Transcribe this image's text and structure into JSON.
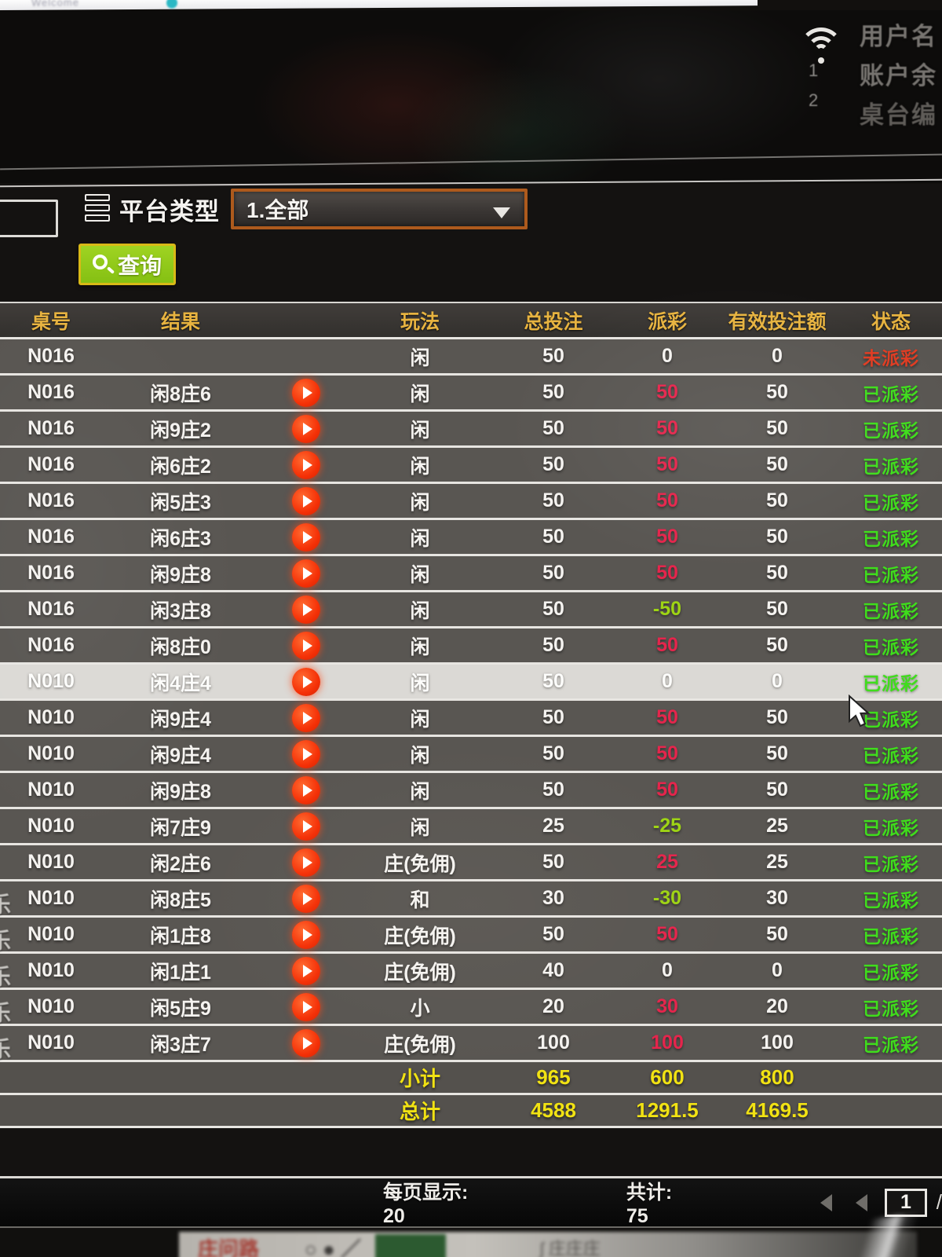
{
  "top": {
    "welcome": "Welcome",
    "right_panel": {
      "lines": [
        "用户名",
        "账户余",
        "桌台编"
      ],
      "numbers": [
        "1",
        "2"
      ]
    }
  },
  "filter": {
    "label": "平台类型",
    "dropdown_value": "1.全部",
    "query_label": "查询"
  },
  "table": {
    "headers": [
      "桌号",
      "结果",
      "",
      "玩法",
      "总投注",
      "派彩",
      "有效投注额",
      "状态"
    ],
    "edge_fragment_char": "乐",
    "rows": [
      {
        "table_no": "N016",
        "result": "",
        "play": "闲",
        "bet": "50",
        "payout": "0",
        "payout_color": "white",
        "valid": "0",
        "status": "未派彩",
        "status_color": "red",
        "highlighted": false,
        "edge": false
      },
      {
        "table_no": "N016",
        "result": "闲8庄6",
        "play": "闲",
        "bet": "50",
        "payout": "50",
        "payout_color": "red",
        "valid": "50",
        "status": "已派彩",
        "status_color": "green",
        "highlighted": false,
        "edge": false
      },
      {
        "table_no": "N016",
        "result": "闲9庄2",
        "play": "闲",
        "bet": "50",
        "payout": "50",
        "payout_color": "red",
        "valid": "50",
        "status": "已派彩",
        "status_color": "green",
        "highlighted": false,
        "edge": false
      },
      {
        "table_no": "N016",
        "result": "闲6庄2",
        "play": "闲",
        "bet": "50",
        "payout": "50",
        "payout_color": "red",
        "valid": "50",
        "status": "已派彩",
        "status_color": "green",
        "highlighted": false,
        "edge": false
      },
      {
        "table_no": "N016",
        "result": "闲5庄3",
        "play": "闲",
        "bet": "50",
        "payout": "50",
        "payout_color": "red",
        "valid": "50",
        "status": "已派彩",
        "status_color": "green",
        "highlighted": false,
        "edge": false
      },
      {
        "table_no": "N016",
        "result": "闲6庄3",
        "play": "闲",
        "bet": "50",
        "payout": "50",
        "payout_color": "red",
        "valid": "50",
        "status": "已派彩",
        "status_color": "green",
        "highlighted": false,
        "edge": false
      },
      {
        "table_no": "N016",
        "result": "闲9庄8",
        "play": "闲",
        "bet": "50",
        "payout": "50",
        "payout_color": "red",
        "valid": "50",
        "status": "已派彩",
        "status_color": "green",
        "highlighted": false,
        "edge": false
      },
      {
        "table_no": "N016",
        "result": "闲3庄8",
        "play": "闲",
        "bet": "50",
        "payout": "-50",
        "payout_color": "green",
        "valid": "50",
        "status": "已派彩",
        "status_color": "green",
        "highlighted": false,
        "edge": false
      },
      {
        "table_no": "N016",
        "result": "闲8庄0",
        "play": "闲",
        "bet": "50",
        "payout": "50",
        "payout_color": "red",
        "valid": "50",
        "status": "已派彩",
        "status_color": "green",
        "highlighted": false,
        "edge": false
      },
      {
        "table_no": "N010",
        "result": "闲4庄4",
        "play": "闲",
        "bet": "50",
        "payout": "0",
        "payout_color": "white",
        "valid": "0",
        "status": "已派彩",
        "status_color": "green",
        "highlighted": true,
        "edge": false
      },
      {
        "table_no": "N010",
        "result": "闲9庄4",
        "play": "闲",
        "bet": "50",
        "payout": "50",
        "payout_color": "red",
        "valid": "50",
        "status": "已派彩",
        "status_color": "green",
        "highlighted": false,
        "edge": false
      },
      {
        "table_no": "N010",
        "result": "闲9庄4",
        "play": "闲",
        "bet": "50",
        "payout": "50",
        "payout_color": "red",
        "valid": "50",
        "status": "已派彩",
        "status_color": "green",
        "highlighted": false,
        "edge": false
      },
      {
        "table_no": "N010",
        "result": "闲9庄8",
        "play": "闲",
        "bet": "50",
        "payout": "50",
        "payout_color": "red",
        "valid": "50",
        "status": "已派彩",
        "status_color": "green",
        "highlighted": false,
        "edge": false
      },
      {
        "table_no": "N010",
        "result": "闲7庄9",
        "play": "闲",
        "bet": "25",
        "payout": "-25",
        "payout_color": "green",
        "valid": "25",
        "status": "已派彩",
        "status_color": "green",
        "highlighted": false,
        "edge": false
      },
      {
        "table_no": "N010",
        "result": "闲2庄6",
        "play": "庄(免佣)",
        "bet": "50",
        "payout": "25",
        "payout_color": "red",
        "valid": "25",
        "status": "已派彩",
        "status_color": "green",
        "highlighted": false,
        "edge": false
      },
      {
        "table_no": "N010",
        "result": "闲8庄5",
        "play": "和",
        "bet": "30",
        "payout": "-30",
        "payout_color": "green",
        "valid": "30",
        "status": "已派彩",
        "status_color": "green",
        "highlighted": false,
        "edge": true
      },
      {
        "table_no": "N010",
        "result": "闲1庄8",
        "play": "庄(免佣)",
        "bet": "50",
        "payout": "50",
        "payout_color": "red",
        "valid": "50",
        "status": "已派彩",
        "status_color": "green",
        "highlighted": false,
        "edge": true
      },
      {
        "table_no": "N010",
        "result": "闲1庄1",
        "play": "庄(免佣)",
        "bet": "40",
        "payout": "0",
        "payout_color": "white",
        "valid": "0",
        "status": "已派彩",
        "status_color": "green",
        "highlighted": false,
        "edge": true
      },
      {
        "table_no": "N010",
        "result": "闲5庄9",
        "play": "小",
        "bet": "20",
        "payout": "30",
        "payout_color": "red",
        "valid": "20",
        "status": "已派彩",
        "status_color": "green",
        "highlighted": false,
        "edge": true
      },
      {
        "table_no": "N010",
        "result": "闲3庄7",
        "play": "庄(免佣)",
        "bet": "100",
        "payout": "100",
        "payout_color": "red",
        "valid": "100",
        "status": "已派彩",
        "status_color": "green",
        "highlighted": false,
        "edge": true
      }
    ],
    "subtotal": {
      "label": "小计",
      "bet": "965",
      "payout": "600",
      "valid": "800"
    },
    "total": {
      "label": "总计",
      "bet": "4588",
      "payout": "1291.5",
      "valid": "4169.5"
    }
  },
  "pagination": {
    "per_page_label": "每页显示: 20",
    "total_label": "共计: 75",
    "page": "1",
    "slash": "/"
  },
  "background_fragments": {
    "road_label": "庄问路",
    "symbols": "○ ● ／",
    "more_text": "ʃ 庄庄庄"
  },
  "colors": {
    "accent_orange": "#ad5a1d",
    "button_green": "#8cc61e",
    "header_gold": "#e7b340",
    "win_red": "#e5254c",
    "lose_green": "#9ed414",
    "paid_green": "#3fdd1c",
    "unpaid_red": "#e03c22",
    "total_yellow": "#f1e213"
  }
}
